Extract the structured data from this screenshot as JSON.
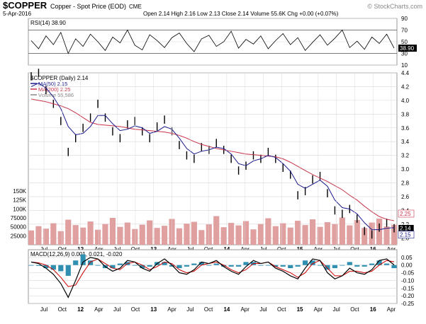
{
  "header": {
    "symbol": "$COPPER",
    "description": "Copper - Spot Price (EOD)",
    "exchange": "CME",
    "date": "5-Apr-2016",
    "ohlc": "Open 2.14  High 2.16  Low 2.13  Close 2.14  Volume 55.6K  Chg +0.00 (+0.07%)",
    "watermark": "© StockCharts.com"
  },
  "colors": {
    "price_bars": "#000000",
    "ma50": "#1a1a8c",
    "ma200": "#c8324a",
    "volume": "#e0a0a0",
    "rsi": "#000000",
    "macd": "#000000",
    "signal": "#cc0000",
    "histogram": "#2f8fb0",
    "grid": "#d8d8d8"
  },
  "chart_data": [
    {
      "type": "line",
      "title": "RSI(14) 38.90",
      "panel": "rsi",
      "ylim": [
        10,
        90
      ],
      "yticks": [
        "90",
        "70",
        "50",
        "30",
        "10"
      ],
      "reference_lines": [
        70,
        30
      ],
      "last_value_label": "38.90",
      "series": [
        {
          "name": "RSI(14)",
          "values": [
            52,
            38,
            60,
            45,
            66,
            30,
            55,
            42,
            63,
            50,
            35,
            58,
            48,
            70,
            44,
            36,
            62,
            52,
            40,
            57,
            65,
            47,
            33,
            55,
            61,
            42,
            50,
            68,
            39,
            54,
            46,
            60,
            38,
            52,
            64,
            45,
            57,
            35,
            49,
            62,
            44,
            56,
            70,
            40,
            51,
            37,
            58,
            47,
            63,
            39
          ]
        }
      ]
    },
    {
      "type": "line",
      "title": "$COPPER (Daily) 2.14",
      "panel": "price",
      "ylim": [
        1.9,
        4.4
      ],
      "yticks": [
        "4.4",
        "4.2",
        "4.0",
        "3.8",
        "3.6",
        "3.4",
        "3.2",
        "3.0",
        "2.8",
        "2.6",
        "2.4",
        "2.2",
        "2.0"
      ],
      "x_tick_labels": [
        "Jul",
        "Oct",
        "12",
        "Apr",
        "Jul",
        "Oct",
        "13",
        "Apr",
        "Jul",
        "Oct",
        "14",
        "Apr",
        "Jul",
        "Oct",
        "15",
        "Apr",
        "Jul",
        "Oct",
        "16",
        "Apr"
      ],
      "legend": [
        "MA(50) 2.15",
        "MA(200) 2.25",
        "Volume 55,586"
      ],
      "last_value_labels": [
        "2.25",
        "2.14",
        "2.15"
      ],
      "series": [
        {
          "name": "$COPPER",
          "values": [
            4.35,
            4.4,
            4.15,
            3.95,
            3.7,
            3.25,
            3.45,
            3.6,
            3.75,
            3.95,
            3.75,
            3.55,
            3.45,
            3.65,
            3.7,
            3.55,
            3.45,
            3.62,
            3.72,
            3.55,
            3.35,
            3.2,
            3.15,
            3.32,
            3.28,
            3.38,
            3.28,
            3.15,
            2.98,
            3.05,
            3.2,
            3.15,
            3.25,
            3.15,
            3.02,
            2.92,
            2.62,
            2.68,
            2.85,
            2.9,
            2.65,
            2.4,
            2.35,
            2.42,
            2.28,
            2.1,
            2.05,
            2.15,
            2.22,
            2.14
          ]
        },
        {
          "name": "MA(50)",
          "values": [
            4.2,
            4.25,
            4.18,
            4.05,
            3.88,
            3.62,
            3.5,
            3.52,
            3.62,
            3.78,
            3.78,
            3.66,
            3.56,
            3.58,
            3.63,
            3.6,
            3.52,
            3.55,
            3.62,
            3.58,
            3.45,
            3.3,
            3.22,
            3.26,
            3.28,
            3.32,
            3.3,
            3.22,
            3.08,
            3.05,
            3.12,
            3.15,
            3.2,
            3.17,
            3.08,
            2.97,
            2.78,
            2.72,
            2.78,
            2.84,
            2.75,
            2.55,
            2.44,
            2.42,
            2.35,
            2.22,
            2.12,
            2.12,
            2.14,
            2.15
          ]
        },
        {
          "name": "MA(200)",
          "values": [
            4.02,
            4.0,
            3.98,
            3.95,
            3.92,
            3.88,
            3.82,
            3.75,
            3.68,
            3.65,
            3.64,
            3.63,
            3.62,
            3.6,
            3.58,
            3.57,
            3.56,
            3.55,
            3.54,
            3.52,
            3.49,
            3.45,
            3.4,
            3.36,
            3.33,
            3.3,
            3.28,
            3.26,
            3.24,
            3.22,
            3.21,
            3.2,
            3.19,
            3.18,
            3.15,
            3.1,
            3.04,
            2.98,
            2.92,
            2.87,
            2.82,
            2.76,
            2.7,
            2.62,
            2.55,
            2.46,
            2.38,
            2.31,
            2.27,
            2.25
          ]
        }
      ]
    },
    {
      "type": "bar",
      "title": "Volume",
      "panel": "volume",
      "ylim": [
        0,
        150000
      ],
      "yticks": [
        "150K",
        "125K",
        "100K",
        "75000",
        "50000",
        "25000"
      ],
      "values": [
        40000,
        52000,
        45000,
        60000,
        38000,
        70000,
        55000,
        48000,
        65000,
        42000,
        58000,
        75000,
        50000,
        62000,
        44000,
        56000,
        68000,
        47000,
        53000,
        72000,
        46000,
        59000,
        64000,
        41000,
        57000,
        80000,
        49000,
        61000,
        54000,
        66000,
        43000,
        58000,
        74000,
        52000,
        60000,
        48000,
        67000,
        55000,
        71000,
        50000,
        63000,
        58000,
        76000,
        54000,
        69000,
        47000,
        62000,
        73000,
        51000,
        55586
      ]
    },
    {
      "type": "line",
      "title": "MACD(12,26,9) 0.001, 0.021, -0.020",
      "panel": "macd",
      "ylim": [
        -0.25,
        0.1
      ],
      "yticks": [
        "0.05",
        "0.00",
        "-0.05",
        "-0.10",
        "-0.15",
        "-0.20",
        "-0.25"
      ],
      "series": [
        {
          "name": "MACD",
          "values": [
            0.02,
            0.01,
            -0.02,
            -0.06,
            -0.12,
            -0.21,
            -0.1,
            0.02,
            0.05,
            0.04,
            -0.01,
            -0.04,
            -0.02,
            0.03,
            0.02,
            -0.02,
            -0.04,
            0.01,
            0.04,
            0.0,
            -0.05,
            -0.06,
            -0.03,
            0.02,
            0.01,
            0.03,
            -0.01,
            -0.04,
            -0.06,
            -0.01,
            0.03,
            0.01,
            0.02,
            -0.02,
            -0.04,
            -0.07,
            -0.09,
            -0.02,
            0.04,
            0.03,
            -0.05,
            -0.09,
            -0.07,
            -0.02,
            -0.05,
            -0.06,
            -0.03,
            0.03,
            0.04,
            0.001
          ]
        },
        {
          "name": "Signal",
          "values": [
            0.02,
            0.015,
            0.0,
            -0.03,
            -0.08,
            -0.14,
            -0.13,
            -0.05,
            0.02,
            0.04,
            0.01,
            -0.02,
            -0.03,
            0.01,
            0.02,
            0.0,
            -0.03,
            -0.01,
            0.02,
            0.01,
            -0.03,
            -0.05,
            -0.04,
            0.0,
            0.01,
            0.02,
            0.0,
            -0.03,
            -0.05,
            -0.03,
            0.01,
            0.01,
            0.02,
            -0.01,
            -0.03,
            -0.05,
            -0.08,
            -0.05,
            0.01,
            0.03,
            -0.02,
            -0.07,
            -0.07,
            -0.04,
            -0.04,
            -0.05,
            -0.04,
            0.0,
            0.03,
            0.021
          ]
        }
      ]
    }
  ]
}
